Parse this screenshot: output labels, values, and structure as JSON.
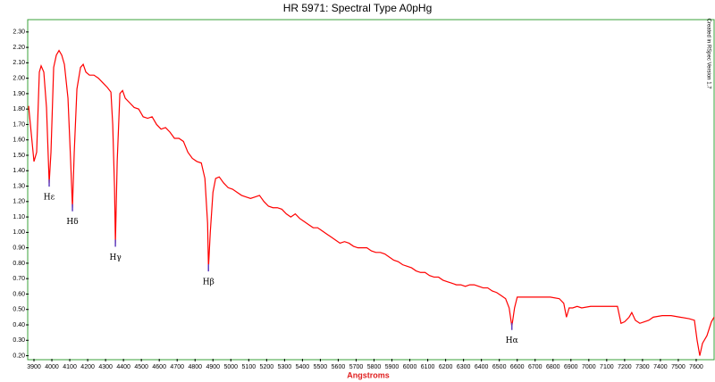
{
  "chart_data": {
    "type": "line",
    "title": "HR 5971: Spectral Type A0pHg",
    "x_label": "Angstroms",
    "side_note": "Created in RSpec Version 1.7",
    "xlim": [
      3870,
      7700
    ],
    "ylim": [
      0.18,
      2.38
    ],
    "xticks": [
      3900,
      4000,
      4100,
      4200,
      4300,
      4400,
      4500,
      4600,
      4700,
      4800,
      4900,
      5000,
      5100,
      5200,
      5300,
      5400,
      5500,
      5600,
      5700,
      5800,
      5900,
      6000,
      6100,
      6200,
      6300,
      6400,
      6500,
      6600,
      6700,
      6800,
      6900,
      7000,
      7100,
      7200,
      7300,
      7400,
      7500,
      7600
    ],
    "yticks": [
      {
        "value": 0.2,
        "label": "0.20"
      },
      {
        "value": 0.3,
        "label": "0.30"
      },
      {
        "value": 0.4,
        "label": "0.40"
      },
      {
        "value": 0.5,
        "label": "0.50"
      },
      {
        "value": 0.6,
        "label": "0.60"
      },
      {
        "value": 0.7,
        "label": "0.70"
      },
      {
        "value": 0.8,
        "label": "0.80"
      },
      {
        "value": 0.9,
        "label": "0.90"
      },
      {
        "value": 1.0,
        "label": "1.00"
      },
      {
        "value": 1.1,
        "label": "1.10"
      },
      {
        "value": 1.2,
        "label": "1.20"
      },
      {
        "value": 1.3,
        "label": "1.30"
      },
      {
        "value": 1.4,
        "label": "1.40"
      },
      {
        "value": 1.5,
        "label": "1.50"
      },
      {
        "value": 1.6,
        "label": "1.60"
      },
      {
        "value": 1.7,
        "label": "1.70"
      },
      {
        "value": 1.8,
        "label": "1.80"
      },
      {
        "value": 1.9,
        "label": "1.90"
      },
      {
        "value": 2.0,
        "label": "2.00"
      },
      {
        "value": 2.1,
        "label": "2.10"
      },
      {
        "value": 2.2,
        "label": "2.20"
      },
      {
        "value": 2.3,
        "label": "2.30"
      }
    ],
    "series": [
      {
        "color": "#ff0000",
        "x": [
          3870,
          3890,
          3900,
          3915,
          3930,
          3940,
          3955,
          3970,
          3985,
          3995,
          4010,
          4025,
          4040,
          4055,
          4070,
          4090,
          4105,
          4115,
          4125,
          4140,
          4160,
          4175,
          4190,
          4210,
          4235,
          4260,
          4285,
          4310,
          4330,
          4340,
          4350,
          4355,
          4365,
          4380,
          4395,
          4410,
          4435,
          4460,
          4485,
          4510,
          4535,
          4560,
          4585,
          4610,
          4635,
          4660,
          4685,
          4710,
          4735,
          4760,
          4785,
          4810,
          4835,
          4855,
          4870,
          4875,
          4885,
          4900,
          4915,
          4935,
          4960,
          4985,
          5010,
          5035,
          5060,
          5085,
          5110,
          5135,
          5160,
          5185,
          5210,
          5235,
          5260,
          5285,
          5310,
          5335,
          5360,
          5385,
          5410,
          5435,
          5460,
          5485,
          5510,
          5535,
          5560,
          5585,
          5610,
          5635,
          5660,
          5685,
          5710,
          5735,
          5760,
          5785,
          5810,
          5835,
          5860,
          5885,
          5910,
          5935,
          5960,
          5985,
          6010,
          6035,
          6060,
          6085,
          6110,
          6135,
          6160,
          6185,
          6210,
          6235,
          6260,
          6285,
          6310,
          6335,
          6360,
          6385,
          6410,
          6435,
          6460,
          6485,
          6510,
          6535,
          6555,
          6570,
          6585,
          6600,
          6635,
          6685,
          6735,
          6785,
          6835,
          6860,
          6875,
          6890,
          6910,
          6935,
          6960,
          7010,
          7060,
          7110,
          7160,
          7180,
          7200,
          7225,
          7240,
          7260,
          7285,
          7310,
          7335,
          7360,
          7410,
          7460,
          7510,
          7560,
          7590,
          7605,
          7620,
          7635,
          7660,
          7685,
          7700
        ],
        "values": [
          1.82,
          1.58,
          1.46,
          1.52,
          2.04,
          2.08,
          2.04,
          1.81,
          1.32,
          1.52,
          2.07,
          2.15,
          2.18,
          2.15,
          2.09,
          1.87,
          1.46,
          1.16,
          1.52,
          1.93,
          2.07,
          2.09,
          2.04,
          2.02,
          2.02,
          2.0,
          1.97,
          1.94,
          1.91,
          1.7,
          1.29,
          0.93,
          1.46,
          1.9,
          1.92,
          1.87,
          1.84,
          1.81,
          1.8,
          1.75,
          1.74,
          1.75,
          1.7,
          1.67,
          1.68,
          1.65,
          1.61,
          1.61,
          1.59,
          1.52,
          1.48,
          1.46,
          1.45,
          1.35,
          1.06,
          0.77,
          1.0,
          1.26,
          1.35,
          1.36,
          1.32,
          1.29,
          1.28,
          1.26,
          1.24,
          1.23,
          1.22,
          1.23,
          1.24,
          1.2,
          1.17,
          1.16,
          1.16,
          1.15,
          1.12,
          1.1,
          1.12,
          1.09,
          1.07,
          1.05,
          1.03,
          1.03,
          1.01,
          0.99,
          0.97,
          0.95,
          0.93,
          0.94,
          0.93,
          0.91,
          0.9,
          0.9,
          0.9,
          0.88,
          0.87,
          0.87,
          0.86,
          0.84,
          0.82,
          0.81,
          0.79,
          0.78,
          0.77,
          0.75,
          0.74,
          0.74,
          0.72,
          0.71,
          0.71,
          0.69,
          0.68,
          0.67,
          0.66,
          0.66,
          0.65,
          0.66,
          0.66,
          0.65,
          0.64,
          0.64,
          0.62,
          0.61,
          0.59,
          0.57,
          0.51,
          0.39,
          0.51,
          0.58,
          0.58,
          0.58,
          0.58,
          0.58,
          0.57,
          0.54,
          0.45,
          0.51,
          0.51,
          0.52,
          0.51,
          0.52,
          0.52,
          0.52,
          0.52,
          0.41,
          0.42,
          0.45,
          0.48,
          0.43,
          0.41,
          0.42,
          0.43,
          0.45,
          0.46,
          0.46,
          0.45,
          0.44,
          0.43,
          0.3,
          0.2,
          0.28,
          0.33,
          0.42,
          0.45
        ]
      }
    ],
    "annotations": [
      {
        "text": "Hε",
        "x": 3985,
        "y": 1.32
      },
      {
        "text": "Hδ",
        "x": 4115,
        "y": 1.16
      },
      {
        "text": "Hγ",
        "x": 4355,
        "y": 0.93
      },
      {
        "text": "Hβ",
        "x": 4875,
        "y": 0.77
      },
      {
        "text": "Hα",
        "x": 6570,
        "y": 0.39
      }
    ]
  }
}
